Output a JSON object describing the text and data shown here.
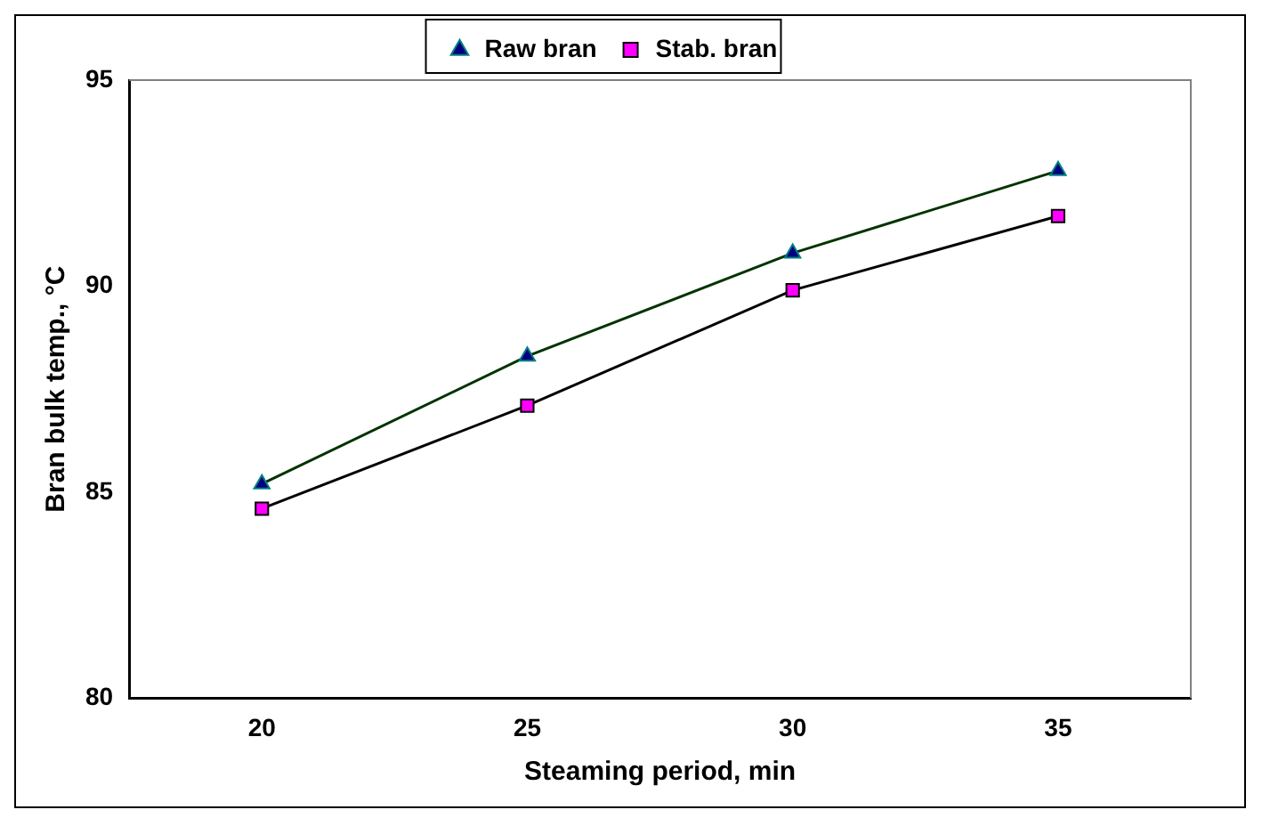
{
  "chart_data": {
    "type": "line",
    "xlabel": "Steaming period, min",
    "ylabel": "Bran bulk temp., °C",
    "categories": [
      "20",
      "25",
      "30",
      "35"
    ],
    "ylim": [
      80,
      95
    ],
    "yticks": [
      80,
      85,
      90,
      95
    ],
    "grid": false,
    "legend": "top",
    "line_style": "solid",
    "series": [
      {
        "name": "Raw bran",
        "color": "#003300",
        "marker": "triangle",
        "values": [
          85.2,
          88.3,
          90.8,
          92.8
        ]
      },
      {
        "name": "Stab. bran",
        "color": "#000000",
        "marker": "square",
        "values": [
          84.6,
          87.1,
          89.9,
          91.7
        ]
      }
    ]
  }
}
